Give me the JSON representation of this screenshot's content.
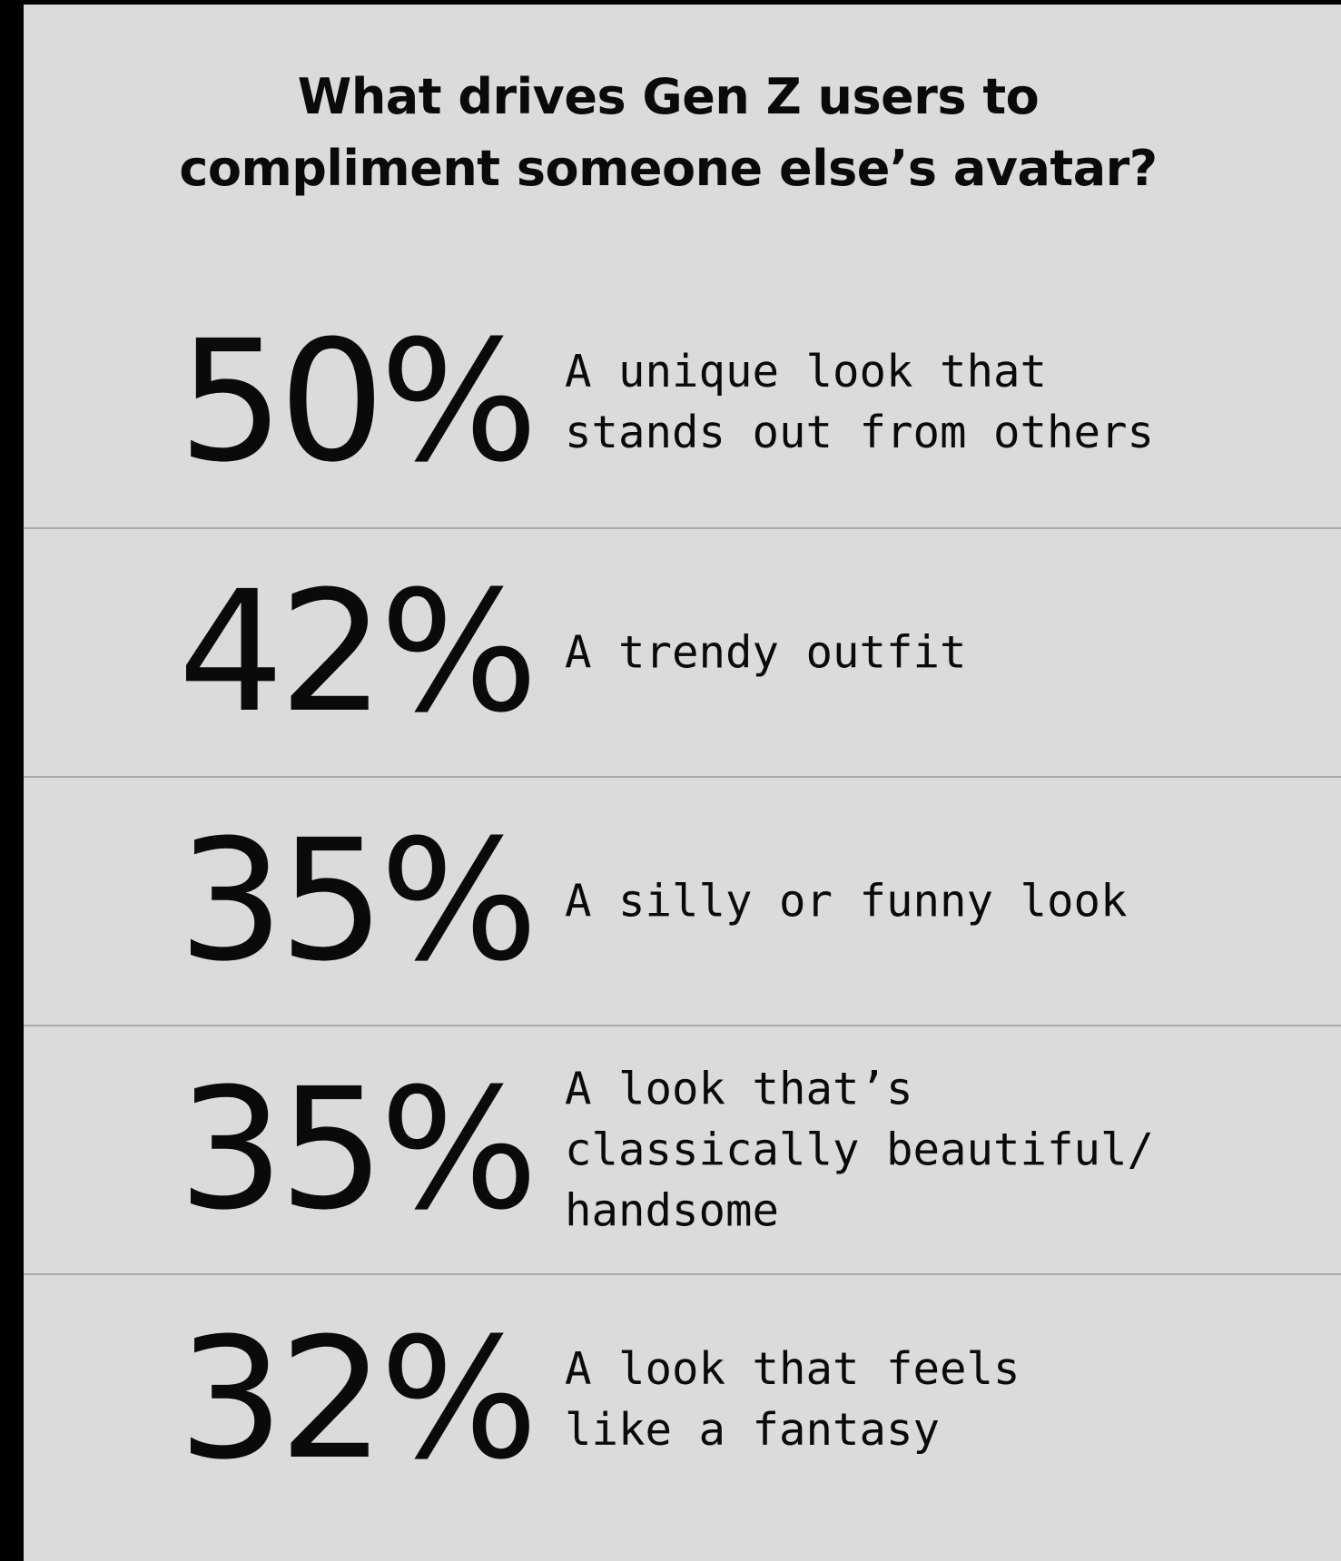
{
  "title_lines": [
    "What drives Gen Z users to",
    "compliment someone else’s avatar?"
  ],
  "items": [
    {
      "percent": "50%",
      "label": "A unique look that\nstands out from others"
    },
    {
      "percent": "42%",
      "label": "A trendy outfit"
    },
    {
      "percent": "35%",
      "label": "A silly or funny look"
    },
    {
      "percent": "35%",
      "label": "A look that’s\nclassically beautiful/\nhandsome"
    },
    {
      "percent": "32%",
      "label": "A look that feels\nlike a fantasy"
    }
  ],
  "colors": {
    "background": "#dbdbdb",
    "frame": "#000000",
    "divider": "#a9a9a9",
    "text": "#0a0a0a"
  }
}
